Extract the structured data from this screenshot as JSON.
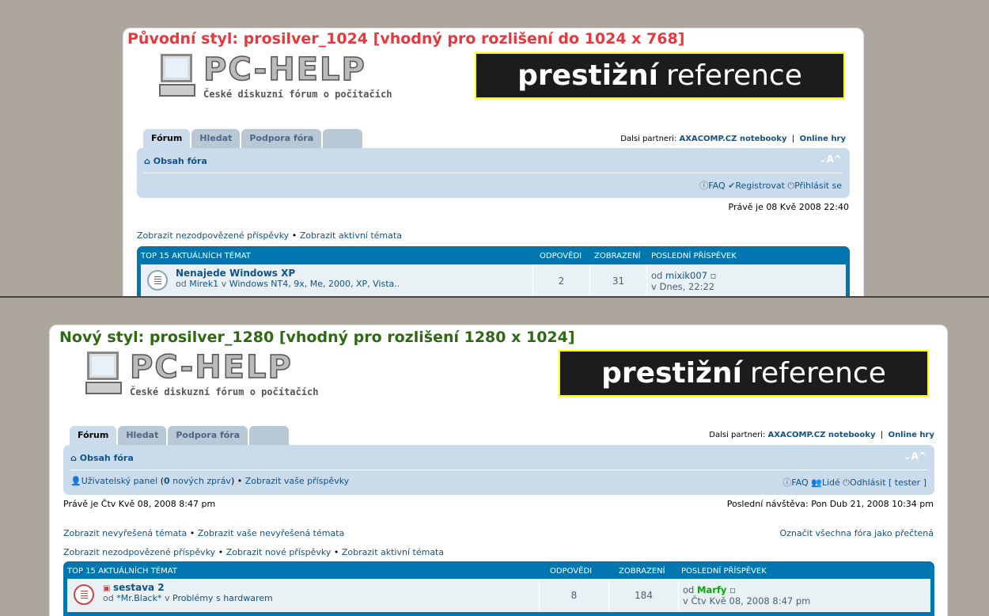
{
  "old": {
    "title": "Původní styl: prosilver_1024 [vhodný pro rozlišení do 1024 x 768]",
    "title_color": "#e8373d",
    "logo": "PC-HELP",
    "tagline": "České diskuzní fórum o počítačích",
    "banner": {
      "bold": "prestižní",
      "rest": "reference"
    },
    "tabs": [
      "Fórum",
      "Hledat",
      "Podpora fóra"
    ],
    "partners_label": "Dalsi partneri:",
    "partner1": "AXACOMP.CZ notebooky",
    "separator": "|",
    "partner2": "Online hry",
    "crumb": "Obsah fóra",
    "font_size": "⌄A^",
    "faq": "FAQ",
    "register": "Registrovat",
    "login": "Přihlásit se",
    "time": "Právě je 08 Kvě 2008 22:40",
    "links": [
      "Zobrazit nezodpovězené příspěvky",
      "Zobrazit aktivní témata"
    ],
    "bullet": "•",
    "table": {
      "headers": [
        "TOP 15 AKTUÁLNÍCH TÉMAT",
        "ODPOVĚDI",
        "ZOBRAZENÍ",
        "POSLEDNÍ PŘÍSPĚVEK"
      ],
      "row": {
        "topic": "Nenajede Windows XP",
        "by": "od",
        "author": "Mirek1",
        "in": "v",
        "forum": "Windows NT4, 9x, Me, 2000, XP, Vista..",
        "replies": "2",
        "views": "31",
        "last_by": "od",
        "last_author": "mixik007",
        "last_time": "v Dnes, 22:22"
      }
    }
  },
  "new": {
    "title": "Nový styl: prosilver_1280 [vhodný pro rozlišení 1280 x 1024]",
    "title_color": "#2d6a12",
    "logo": "PC-HELP",
    "tagline": "České diskuzní fórum o počítačích",
    "banner": {
      "bold": "prestižní",
      "rest": "reference"
    },
    "tabs": [
      "Fórum",
      "Hledat",
      "Podpora fóra"
    ],
    "partners_label": "Dalsi partneri:",
    "partner1": "AXACOMP.CZ notebooky",
    "separator": "|",
    "partner2": "Online hry",
    "crumb": "Obsah fóra",
    "font_size": "⌄A^",
    "ucp": "Uživatelský panel",
    "ucp_open": "(",
    "new_msgs": "0",
    "new_msgs_label": "nových zpráv",
    "ucp_close": ")",
    "own_posts": "Zobrazit vaše příspěvky",
    "faq": "FAQ",
    "members": "Lidé",
    "logout": "Odhlásit [ tester ]",
    "time": "Právě je Čtv Kvě 08, 2008 8:47 pm",
    "last_visit": "Poslední návštěva: Pon Dub 21, 2008 10:34 pm",
    "links1": [
      "Zobrazit nevyřešená témata",
      "Zobrazit vaše nevyřešená témata"
    ],
    "mark_read": "Označit všechna fóra jako přečtená",
    "links2": [
      "Zobrazit nezodpovězené příspěvky",
      "Zobrazit nové příspěvky",
      "Zobrazit aktivní témata"
    ],
    "bullet": "•",
    "table": {
      "headers": [
        "TOP 15 AKTUÁLNÍCH TÉMAT",
        "ODPOVĚDI",
        "ZOBRAZENÍ",
        "POSLEDNÍ PŘÍSPĚVEK"
      ],
      "row": {
        "topic": "sestava 2",
        "by": "od",
        "author": "*Mr.Black*",
        "in": "v",
        "forum": "Problémy s hardwarem",
        "replies": "8",
        "views": "184",
        "last_by": "od",
        "last_author": "Marfy",
        "last_author_color": "#00aa00",
        "last_time": "v Čtv Kvě 08, 2008 8:47 pm"
      }
    }
  }
}
